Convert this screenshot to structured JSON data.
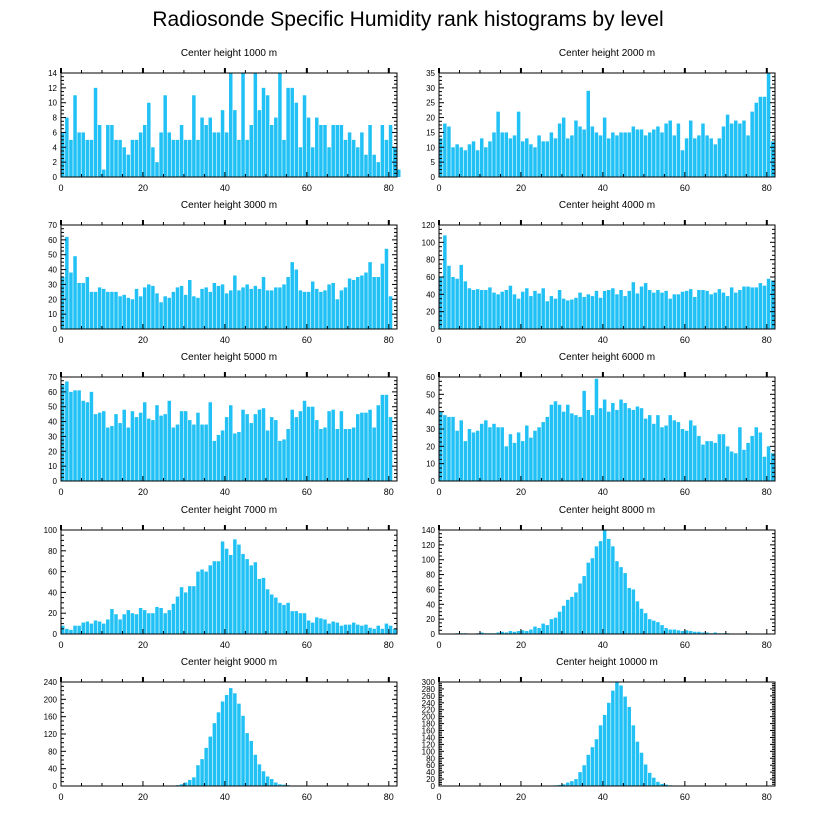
{
  "title": "Radiosonde Specific Humidity rank histograms by level",
  "colors": {
    "bar": "#22c1f5",
    "axis": "#000000"
  },
  "chart_data": [
    {
      "type": "bar",
      "title": "Center height 1000 m",
      "xlim": [
        0,
        82
      ],
      "ylim": [
        0,
        14
      ],
      "yticks": [
        0,
        2,
        4,
        6,
        8,
        10,
        12,
        14
      ],
      "xticks": [
        0,
        20,
        40,
        60,
        80
      ],
      "values": [
        6,
        8,
        5,
        11,
        6,
        6,
        5,
        5,
        12,
        7,
        1,
        7,
        7,
        5,
        5,
        4,
        3,
        5,
        5,
        6,
        7,
        10,
        4,
        2,
        6,
        11,
        6,
        5,
        5,
        7,
        5,
        5,
        11,
        5,
        8,
        7,
        8,
        6,
        6,
        9,
        6,
        14,
        9,
        5,
        14,
        5,
        7,
        14,
        9,
        12,
        11,
        7,
        8,
        14,
        5,
        12,
        12,
        10,
        4,
        11,
        8,
        4,
        8,
        7,
        7,
        4,
        7,
        7,
        7,
        5,
        6,
        5,
        4,
        6,
        3,
        7,
        3,
        2,
        7,
        5,
        7,
        4,
        1
      ]
    },
    {
      "type": "bar",
      "title": "Center height 2000 m",
      "xlim": [
        0,
        82
      ],
      "ylim": [
        0,
        35
      ],
      "yticks": [
        0,
        5,
        10,
        15,
        20,
        25,
        30,
        35
      ],
      "xticks": [
        0,
        20,
        40,
        60,
        80
      ],
      "values": [
        13,
        18,
        17,
        10,
        11,
        10,
        9,
        11,
        12,
        9,
        13,
        10,
        12,
        15,
        22,
        15,
        15,
        13,
        14,
        22,
        12,
        13,
        11,
        10,
        14,
        12,
        12,
        15,
        13,
        18,
        20,
        13,
        14,
        19,
        17,
        16,
        29,
        17,
        15,
        14,
        20,
        13,
        15,
        14,
        15,
        15,
        15,
        17,
        16,
        16,
        14,
        15,
        16,
        17,
        15,
        18,
        19,
        14,
        18,
        9,
        13,
        19,
        13,
        14,
        18,
        14,
        13,
        11,
        13,
        17,
        21,
        18,
        19,
        18,
        19,
        14,
        22,
        25,
        27,
        27,
        35,
        12
      ]
    },
    {
      "type": "bar",
      "title": "Center height 3000 m",
      "xlim": [
        0,
        82
      ],
      "ylim": [
        0,
        70
      ],
      "yticks": [
        0,
        10,
        20,
        30,
        40,
        50,
        60,
        70
      ],
      "xticks": [
        0,
        20,
        40,
        60,
        80
      ],
      "values": [
        35,
        62,
        38,
        49,
        31,
        31,
        35,
        25,
        25,
        28,
        27,
        25,
        25,
        25,
        22,
        23,
        21,
        20,
        27,
        22,
        28,
        30,
        29,
        24,
        18,
        22,
        21,
        25,
        28,
        29,
        23,
        33,
        22,
        21,
        27,
        28,
        25,
        31,
        29,
        30,
        24,
        26,
        36,
        26,
        28,
        30,
        27,
        29,
        27,
        35,
        26,
        26,
        28,
        28,
        30,
        35,
        45,
        40,
        26,
        25,
        25,
        32,
        27,
        25,
        26,
        30,
        31,
        20,
        26,
        28,
        34,
        33,
        35,
        36,
        38,
        45,
        35,
        35,
        44,
        54,
        22
      ]
    },
    {
      "type": "bar",
      "title": "Center height 4000 m",
      "xlim": [
        0,
        82
      ],
      "ylim": [
        0,
        120
      ],
      "yticks": [
        0,
        20,
        40,
        60,
        80,
        100,
        120
      ],
      "xticks": [
        0,
        20,
        40,
        60,
        80
      ],
      "values": [
        60,
        108,
        73,
        60,
        58,
        74,
        55,
        47,
        45,
        46,
        45,
        45,
        48,
        42,
        40,
        43,
        45,
        50,
        40,
        35,
        43,
        47,
        38,
        44,
        41,
        47,
        32,
        38,
        35,
        45,
        35,
        33,
        34,
        36,
        42,
        37,
        40,
        38,
        44,
        36,
        44,
        45,
        47,
        40,
        45,
        38,
        44,
        54,
        41,
        49,
        53,
        45,
        42,
        45,
        42,
        44,
        35,
        40,
        40,
        43,
        44,
        46,
        37,
        45,
        45,
        44,
        40,
        42,
        46,
        42,
        38,
        48,
        42,
        45,
        49,
        49,
        48,
        48,
        53,
        50,
        58,
        56
      ]
    },
    {
      "type": "bar",
      "title": "Center height 5000 m",
      "xlim": [
        0,
        82
      ],
      "ylim": [
        0,
        70
      ],
      "yticks": [
        0,
        10,
        20,
        30,
        40,
        50,
        60,
        70
      ],
      "xticks": [
        0,
        20,
        40,
        60,
        80
      ],
      "values": [
        65,
        67,
        60,
        61,
        61,
        54,
        53,
        60,
        45,
        46,
        47,
        36,
        37,
        45,
        39,
        48,
        36,
        47,
        43,
        46,
        53,
        42,
        41,
        51,
        44,
        45,
        54,
        36,
        38,
        47,
        47,
        41,
        38,
        46,
        38,
        38,
        53,
        27,
        31,
        34,
        43,
        51,
        32,
        33,
        48,
        45,
        39,
        45,
        48,
        49,
        34,
        43,
        41,
        27,
        28,
        35,
        48,
        43,
        47,
        54,
        50,
        50,
        41,
        35,
        36,
        47,
        48,
        35,
        47,
        35,
        35,
        36,
        45,
        46,
        46,
        48,
        36,
        51,
        58,
        58,
        43
      ]
    },
    {
      "type": "bar",
      "title": "Center height 6000 m",
      "xlim": [
        0,
        82
      ],
      "ylim": [
        0,
        60
      ],
      "yticks": [
        0,
        10,
        20,
        30,
        40,
        50,
        60
      ],
      "xticks": [
        0,
        20,
        40,
        60,
        80
      ],
      "values": [
        40,
        38,
        37,
        37,
        29,
        35,
        23,
        30,
        28,
        29,
        33,
        35,
        31,
        33,
        31,
        31,
        20,
        27,
        22,
        28,
        23,
        32,
        25,
        29,
        31,
        34,
        37,
        44,
        46,
        44,
        40,
        44,
        39,
        38,
        37,
        52,
        41,
        38,
        59,
        42,
        47,
        40,
        45,
        41,
        47,
        45,
        42,
        41,
        43,
        42,
        36,
        38,
        33,
        38,
        31,
        32,
        38,
        35,
        34,
        30,
        29,
        35,
        32,
        26,
        21,
        23,
        23,
        22,
        27,
        27,
        20,
        17,
        16,
        31,
        18,
        22,
        26,
        31,
        28,
        14,
        20,
        16
      ]
    },
    {
      "type": "bar",
      "title": "Center height 7000 m",
      "xlim": [
        0,
        82
      ],
      "ylim": [
        0,
        100
      ],
      "yticks": [
        0,
        20,
        40,
        60,
        80,
        100
      ],
      "xticks": [
        0,
        20,
        40,
        60,
        80
      ],
      "values": [
        8,
        5,
        4,
        8,
        8,
        11,
        12,
        10,
        13,
        12,
        10,
        14,
        24,
        19,
        14,
        19,
        23,
        20,
        19,
        25,
        23,
        20,
        20,
        26,
        25,
        20,
        23,
        29,
        36,
        45,
        40,
        46,
        46,
        60,
        62,
        60,
        66,
        70,
        70,
        89,
        82,
        76,
        91,
        86,
        77,
        72,
        66,
        69,
        53,
        54,
        43,
        38,
        35,
        30,
        28,
        30,
        22,
        22,
        20,
        20,
        13,
        11,
        16,
        15,
        14,
        10,
        12,
        11,
        8,
        9,
        9,
        11,
        9,
        8,
        9,
        6,
        5,
        8,
        5,
        10,
        8,
        5
      ]
    },
    {
      "type": "bar",
      "title": "Center height 8000 m",
      "xlim": [
        0,
        82
      ],
      "ylim": [
        0,
        140
      ],
      "yticks": [
        0,
        20,
        40,
        60,
        80,
        100,
        120,
        140
      ],
      "xticks": [
        0,
        20,
        40,
        60,
        80
      ],
      "values": [
        0,
        0,
        0,
        0,
        1,
        1,
        1,
        0,
        0,
        1,
        2,
        1,
        1,
        1,
        2,
        3,
        2,
        4,
        3,
        4,
        5,
        4,
        6,
        10,
        8,
        14,
        12,
        20,
        22,
        30,
        38,
        46,
        50,
        56,
        68,
        78,
        96,
        102,
        118,
        125,
        140,
        128,
        118,
        98,
        90,
        82,
        62,
        60,
        44,
        34,
        28,
        20,
        18,
        16,
        12,
        8,
        6,
        6,
        5,
        4,
        5,
        4,
        3,
        3,
        2,
        2,
        1,
        2,
        1,
        1,
        1,
        0,
        0,
        0,
        0,
        1,
        0,
        0,
        0,
        0,
        0,
        0
      ]
    },
    {
      "type": "bar",
      "title": "Center height 9000 m",
      "xlim": [
        0,
        82
      ],
      "ylim": [
        0,
        240
      ],
      "yticks": [
        0,
        40,
        80,
        120,
        160,
        200,
        240
      ],
      "xticks": [
        0,
        20,
        40,
        60,
        80
      ],
      "values": [
        0,
        0,
        0,
        0,
        0,
        0,
        0,
        0,
        0,
        0,
        0,
        0,
        0,
        0,
        0,
        0,
        0,
        0,
        0,
        0,
        0,
        0,
        0,
        0,
        0,
        0,
        0,
        1,
        2,
        4,
        8,
        14,
        20,
        48,
        62,
        88,
        114,
        145,
        170,
        195,
        210,
        226,
        214,
        190,
        162,
        122,
        104,
        72,
        50,
        34,
        22,
        16,
        8,
        4,
        3,
        2,
        1,
        1,
        0,
        0,
        0,
        0,
        0,
        0,
        0,
        0,
        0,
        0,
        0,
        0,
        0,
        0,
        0,
        0,
        0,
        0,
        0,
        0,
        0,
        0,
        0,
        0
      ]
    },
    {
      "type": "bar",
      "title": "Center height 10000 m",
      "xlim": [
        0,
        82
      ],
      "ylim": [
        0,
        300
      ],
      "yticks": [
        0,
        20,
        40,
        60,
        80,
        100,
        120,
        140,
        160,
        180,
        200,
        220,
        240,
        260,
        280,
        300
      ],
      "xticks": [
        0,
        20,
        40,
        60,
        80
      ],
      "values": [
        0,
        0,
        0,
        0,
        0,
        0,
        0,
        0,
        0,
        0,
        0,
        0,
        0,
        0,
        0,
        0,
        0,
        0,
        0,
        0,
        0,
        0,
        0,
        0,
        0,
        0,
        0,
        1,
        2,
        3,
        5,
        10,
        14,
        20,
        40,
        60,
        90,
        112,
        135,
        175,
        205,
        240,
        275,
        300,
        290,
        258,
        228,
        175,
        128,
        96,
        62,
        38,
        24,
        12,
        6,
        4,
        2,
        1,
        0,
        0,
        0,
        0,
        0,
        0,
        0,
        0,
        0,
        0,
        0,
        0,
        0,
        0,
        0,
        0,
        0,
        0,
        0,
        0,
        0,
        0,
        0,
        0
      ]
    }
  ]
}
